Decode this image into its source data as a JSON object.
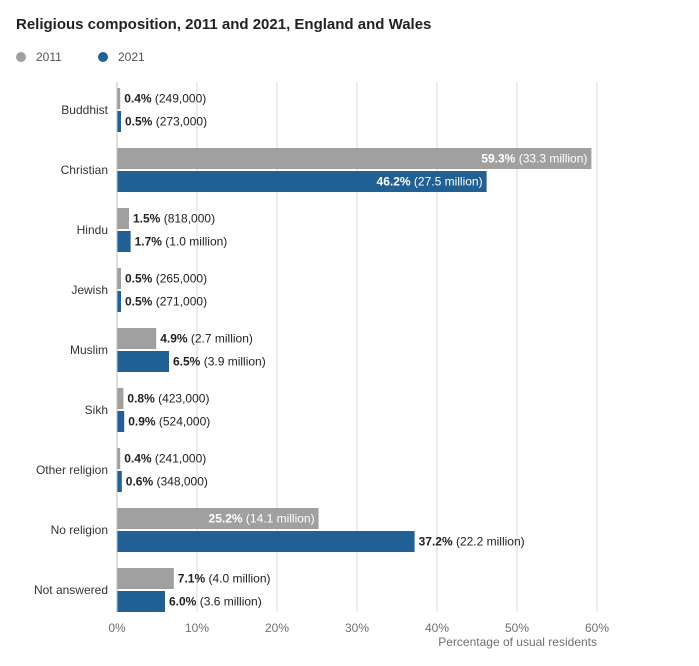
{
  "title": "Religious composition, 2011 and 2021, England and Wales",
  "chart_data": {
    "type": "bar",
    "orientation": "horizontal",
    "title": "Religious composition, 2011 and 2021, England and Wales",
    "xlabel": "Percentage of usual residents",
    "ylabel": "",
    "xlim": [
      0,
      60
    ],
    "x_ticks": [
      "0%",
      "10%",
      "20%",
      "30%",
      "40%",
      "50%",
      "60%"
    ],
    "grid": true,
    "legend_position": "top-left",
    "categories": [
      "Buddhist",
      "Christian",
      "Hindu",
      "Jewish",
      "Muslim",
      "Sikh",
      "Other religion",
      "No religion",
      "Not answered"
    ],
    "series": [
      {
        "name": "2011",
        "color": "#a0a0a0",
        "values": [
          0.4,
          59.3,
          1.5,
          0.5,
          4.9,
          0.8,
          0.4,
          25.2,
          7.1
        ],
        "value_labels": [
          "0.4%",
          "59.3%",
          "1.5%",
          "0.5%",
          "4.9%",
          "0.8%",
          "0.4%",
          "25.2%",
          "7.1%"
        ],
        "count_labels": [
          "(249,000)",
          "(33.3 million)",
          "(818,000)",
          "(265,000)",
          "(2.7 million)",
          "(423,000)",
          "(241,000)",
          "(14.1 million)",
          "(4.0 million)"
        ],
        "label_inside": [
          false,
          true,
          false,
          false,
          false,
          false,
          false,
          true,
          false
        ]
      },
      {
        "name": "2021",
        "color": "#206095",
        "values": [
          0.5,
          46.2,
          1.7,
          0.5,
          6.5,
          0.9,
          0.6,
          37.2,
          6.0
        ],
        "value_labels": [
          "0.5%",
          "46.2%",
          "1.7%",
          "0.5%",
          "6.5%",
          "0.9%",
          "0.6%",
          "37.2%",
          "6.0%"
        ],
        "count_labels": [
          "(273,000)",
          "(27.5 million)",
          "(1.0 million)",
          "(271,000)",
          "(3.9 million)",
          "(524,000)",
          "(348,000)",
          "(22.2 million)",
          "(3.6 million)"
        ],
        "label_inside": [
          false,
          true,
          false,
          false,
          false,
          false,
          false,
          false,
          false
        ]
      }
    ]
  }
}
